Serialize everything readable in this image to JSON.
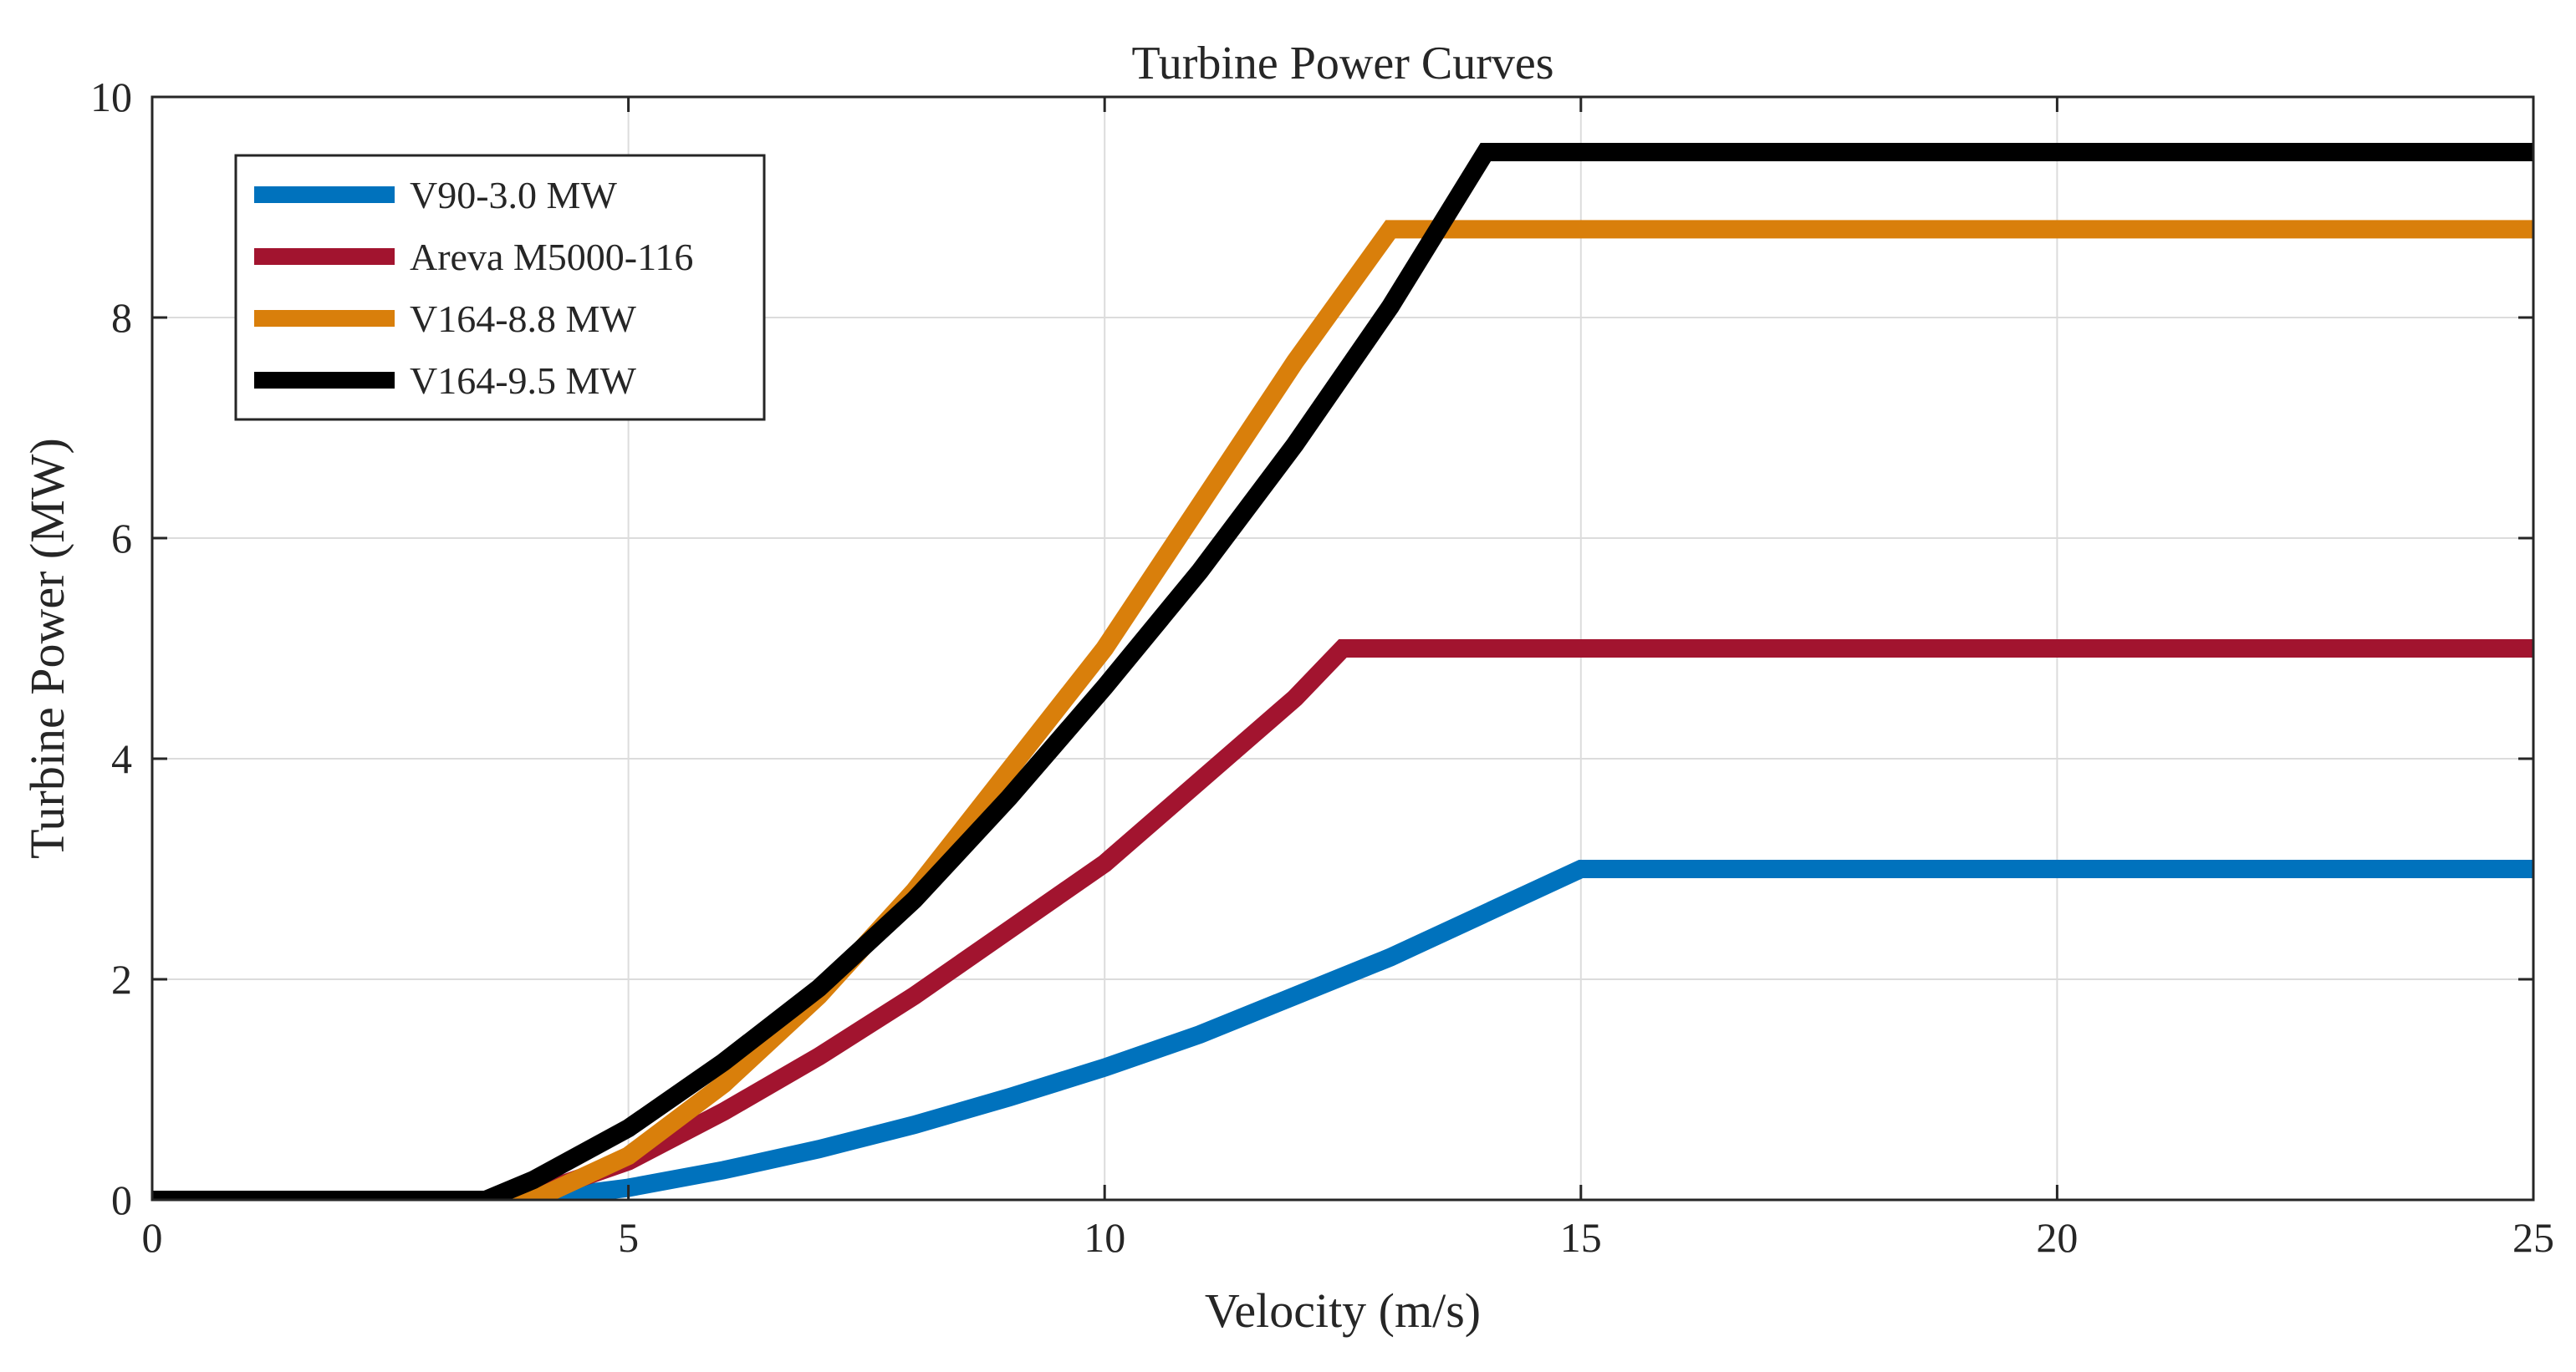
{
  "chart_data": {
    "type": "line",
    "title": "Turbine Power Curves",
    "xlabel": "Velocity  (m/s)",
    "ylabel": "Turbine  Power (MW)",
    "xlim": [
      0,
      25
    ],
    "ylim": [
      0,
      10
    ],
    "xticks": [
      0,
      5,
      10,
      15,
      20,
      25
    ],
    "yticks": [
      0,
      2,
      4,
      6,
      8,
      10
    ],
    "xtick_labels": [
      "0",
      "5",
      "10",
      "15",
      "20",
      "25"
    ],
    "ytick_labels": [
      "0",
      "2",
      "4",
      "6",
      "8",
      "10"
    ],
    "grid": true,
    "legend_position": "top-left",
    "series": [
      {
        "name": "V90-3.0 MW",
        "color": "#0072BD",
        "x": [
          0,
          4,
          5,
          6,
          7,
          8,
          9,
          10,
          11,
          12,
          13,
          14,
          15,
          25
        ],
        "y": [
          0,
          0,
          0.11,
          0.27,
          0.46,
          0.68,
          0.93,
          1.2,
          1.5,
          1.85,
          2.2,
          2.6,
          3.0,
          3.0
        ]
      },
      {
        "name": "Areva M5000-116",
        "color": "#A2142F",
        "x": [
          0,
          3.6,
          4,
          5,
          6,
          7,
          8,
          9,
          10,
          11,
          12,
          12.5,
          25
        ],
        "y": [
          0,
          0,
          0.05,
          0.35,
          0.8,
          1.3,
          1.85,
          2.45,
          3.05,
          3.8,
          4.55,
          5.0,
          5.0
        ]
      },
      {
        "name": "V164-8.8 MW",
        "color": "#D97F0B",
        "x": [
          0,
          3.5,
          4,
          5,
          6,
          7,
          8,
          9,
          10,
          11,
          12,
          13,
          25
        ],
        "y": [
          0,
          0,
          0.0,
          0.4,
          1.05,
          1.85,
          2.8,
          3.9,
          5.0,
          6.3,
          7.6,
          8.8,
          8.8
        ]
      },
      {
        "name": "V164-9.5 MW",
        "color": "#000000",
        "x": [
          0,
          3.5,
          4,
          5,
          6,
          7,
          8,
          9,
          10,
          11,
          12,
          13,
          14,
          25
        ],
        "y": [
          0,
          0,
          0.18,
          0.65,
          1.25,
          1.92,
          2.72,
          3.65,
          4.65,
          5.7,
          6.85,
          8.1,
          9.5,
          9.5
        ]
      }
    ]
  }
}
